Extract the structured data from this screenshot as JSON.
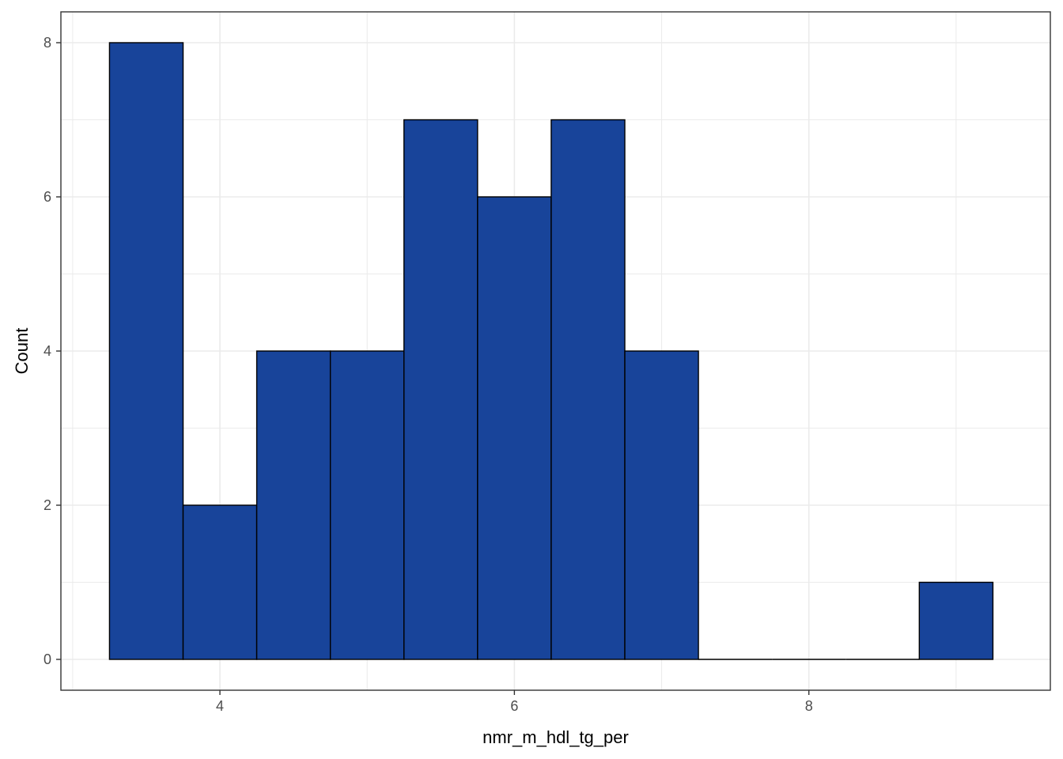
{
  "chart_data": {
    "type": "bar",
    "subtype": "histogram",
    "xlabel": "nmr_m_hdl_tg_per",
    "ylabel": "Count",
    "xlim": [
      2.92,
      9.64
    ],
    "ylim": [
      -0.4,
      8.4
    ],
    "x_ticks": [
      4,
      6,
      8
    ],
    "x_minor_ticks": [
      3,
      5,
      7,
      9
    ],
    "y_ticks": [
      0,
      2,
      4,
      6,
      8
    ],
    "y_minor_ticks": [
      1,
      3,
      5,
      7
    ],
    "x_tick_labels": [
      "4",
      "6",
      "8"
    ],
    "y_tick_labels": [
      "0",
      "2",
      "4",
      "6",
      "8"
    ],
    "bins": [
      {
        "x0": 3.25,
        "x1": 3.75,
        "count": 8
      },
      {
        "x0": 3.75,
        "x1": 4.25,
        "count": 2
      },
      {
        "x0": 4.25,
        "x1": 4.75,
        "count": 4
      },
      {
        "x0": 4.75,
        "x1": 5.25,
        "count": 4
      },
      {
        "x0": 5.25,
        "x1": 5.75,
        "count": 7
      },
      {
        "x0": 5.75,
        "x1": 6.25,
        "count": 6
      },
      {
        "x0": 6.25,
        "x1": 6.75,
        "count": 7
      },
      {
        "x0": 6.75,
        "x1": 7.25,
        "count": 4
      },
      {
        "x0": 7.25,
        "x1": 7.75,
        "count": 0
      },
      {
        "x0": 7.75,
        "x1": 8.25,
        "count": 0
      },
      {
        "x0": 8.25,
        "x1": 8.75,
        "count": 0
      },
      {
        "x0": 8.75,
        "x1": 9.25,
        "count": 1
      }
    ],
    "grid": true,
    "colors": {
      "bar_fill": "#18449a",
      "bar_stroke": "#000000",
      "grid": "#ebebeb",
      "panel_border": "#333333"
    }
  }
}
